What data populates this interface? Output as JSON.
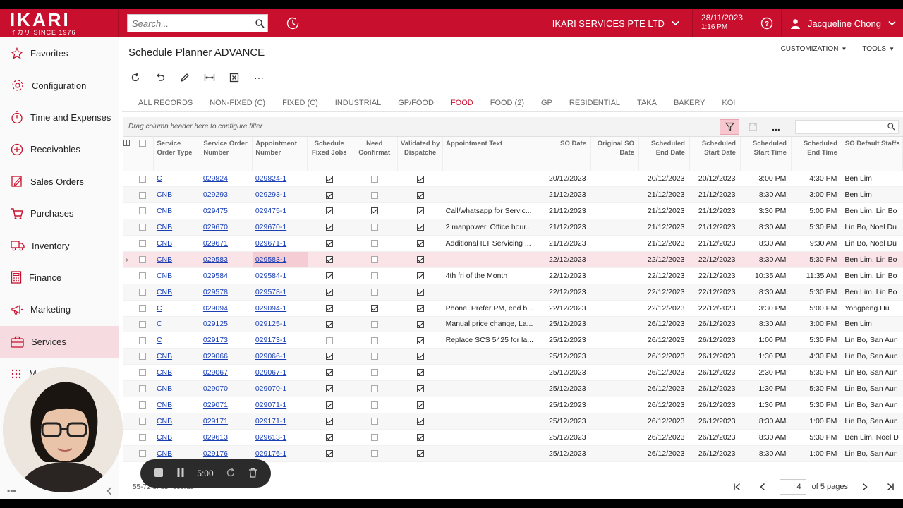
{
  "app": {
    "brand": "IKARI",
    "brand_sub": "イカリ SINCE 1976",
    "search_placeholder": "Search...",
    "company": "IKARI SERVICES PTE LTD",
    "date": "28/11/2023",
    "time": "1:16 PM",
    "user": "Jacqueline Chong"
  },
  "sidebar": {
    "items": [
      {
        "label": "Favorites",
        "icon": "star-icon"
      },
      {
        "label": "Configuration",
        "icon": "gear-icon"
      },
      {
        "label": "Time and Expenses",
        "icon": "stopwatch-icon"
      },
      {
        "label": "Receivables",
        "icon": "plus-circle-icon"
      },
      {
        "label": "Sales Orders",
        "icon": "edit-document-icon"
      },
      {
        "label": "Purchases",
        "icon": "cart-icon"
      },
      {
        "label": "Inventory",
        "icon": "truck-icon"
      },
      {
        "label": "Finance",
        "icon": "calculator-icon"
      },
      {
        "label": "Marketing",
        "icon": "megaphone-icon"
      },
      {
        "label": "Services",
        "icon": "briefcase-icon"
      }
    ],
    "more_label": "M"
  },
  "page": {
    "title": "Schedule Planner ADVANCE",
    "customization": "CUSTOMIZATION",
    "tools": "TOOLS"
  },
  "tabs": [
    "ALL RECORDS",
    "NON-FIXED (C)",
    "FIXED (C)",
    "INDUSTRIAL",
    "GP/FOOD",
    "FOOD",
    "FOOD (2)",
    "GP",
    "RESIDENTIAL",
    "TAKA",
    "BAKERY",
    "KOI"
  ],
  "active_tab": "FOOD",
  "grid": {
    "drag_hint": "Drag column header here to configure filter",
    "headers": {
      "so_type": "Service Order Type",
      "so_number": "Service Order Number",
      "appt_number": "Appointment Number",
      "fixed": "Schedule Fixed Jobs",
      "confirm": "Need Confirmat",
      "validated": "Validated by Dispatche",
      "appt_text": "Appointment Text",
      "so_date": "SO Date",
      "orig_so_date": "Original SO Date",
      "end_date": "Scheduled End Date",
      "start_date": "Scheduled Start Date",
      "start_time": "Scheduled Start Time",
      "end_time": "Scheduled End Time",
      "staff": "SO Default Staffs"
    },
    "rows": [
      {
        "type": "C",
        "so": "029824",
        "appt": "029824-1",
        "fixed": true,
        "confirm": false,
        "validated": true,
        "text": "",
        "so_date": "20/12/2023",
        "orig": "",
        "end_date": "20/12/2023",
        "start_date": "20/12/2023",
        "start_time": "3:00 PM",
        "end_time": "4:30 PM",
        "staff": "Ben Lim"
      },
      {
        "type": "CNB",
        "so": "029293",
        "appt": "029293-1",
        "fixed": true,
        "confirm": false,
        "validated": true,
        "text": "",
        "so_date": "21/12/2023",
        "orig": "",
        "end_date": "21/12/2023",
        "start_date": "21/12/2023",
        "start_time": "8:30 AM",
        "end_time": "3:00 PM",
        "staff": "Ben Lim"
      },
      {
        "type": "CNB",
        "so": "029475",
        "appt": "029475-1",
        "fixed": true,
        "confirm": true,
        "validated": true,
        "text": "Call/whatsapp for Servic...",
        "so_date": "21/12/2023",
        "orig": "",
        "end_date": "21/12/2023",
        "start_date": "21/12/2023",
        "start_time": "3:30 PM",
        "end_time": "5:00 PM",
        "staff": "Ben Lim, Lin Bo"
      },
      {
        "type": "CNB",
        "so": "029670",
        "appt": "029670-1",
        "fixed": true,
        "confirm": false,
        "validated": true,
        "text": "2 manpower. Office hour...",
        "so_date": "21/12/2023",
        "orig": "",
        "end_date": "21/12/2023",
        "start_date": "21/12/2023",
        "start_time": "8:30 AM",
        "end_time": "5:30 PM",
        "staff": "Lin Bo, Noel Du"
      },
      {
        "type": "CNB",
        "so": "029671",
        "appt": "029671-1",
        "fixed": true,
        "confirm": false,
        "validated": true,
        "text": "Additional ILT Servicing ...",
        "so_date": "21/12/2023",
        "orig": "",
        "end_date": "21/12/2023",
        "start_date": "21/12/2023",
        "start_time": "8:30 AM",
        "end_time": "9:30 AM",
        "staff": "Lin Bo, Noel Du"
      },
      {
        "type": "CNB",
        "so": "029583",
        "appt": "029583-1",
        "fixed": true,
        "confirm": false,
        "validated": true,
        "text": "",
        "so_date": "22/12/2023",
        "orig": "",
        "end_date": "22/12/2023",
        "start_date": "22/12/2023",
        "start_time": "8:30 AM",
        "end_time": "5:30 PM",
        "staff": "Ben Lim, Lin Bo"
      },
      {
        "type": "CNB",
        "so": "029584",
        "appt": "029584-1",
        "fixed": true,
        "confirm": false,
        "validated": true,
        "text": "4th fri of the Month",
        "so_date": "22/12/2023",
        "orig": "",
        "end_date": "22/12/2023",
        "start_date": "22/12/2023",
        "start_time": "10:35 AM",
        "end_time": "11:35 AM",
        "staff": "Ben Lim, Lin Bo"
      },
      {
        "type": "CNB",
        "so": "029578",
        "appt": "029578-1",
        "fixed": true,
        "confirm": false,
        "validated": true,
        "text": "",
        "so_date": "22/12/2023",
        "orig": "",
        "end_date": "22/12/2023",
        "start_date": "22/12/2023",
        "start_time": "8:30 AM",
        "end_time": "5:30 PM",
        "staff": "Ben Lim, Lin Bo"
      },
      {
        "type": "C",
        "so": "029094",
        "appt": "029094-1",
        "fixed": true,
        "confirm": true,
        "validated": true,
        "text": "Phone, Prefer PM, end b...",
        "so_date": "22/12/2023",
        "orig": "",
        "end_date": "22/12/2023",
        "start_date": "22/12/2023",
        "start_time": "3:30 PM",
        "end_time": "5:00 PM",
        "staff": "Yongpeng Hu"
      },
      {
        "type": "C",
        "so": "029125",
        "appt": "029125-1",
        "fixed": true,
        "confirm": false,
        "validated": true,
        "text": "Manual price change, La...",
        "so_date": "25/12/2023",
        "orig": "",
        "end_date": "26/12/2023",
        "start_date": "26/12/2023",
        "start_time": "8:30 AM",
        "end_time": "3:00 PM",
        "staff": "Ben Lim"
      },
      {
        "type": "C",
        "so": "029173",
        "appt": "029173-1",
        "fixed": false,
        "confirm": false,
        "validated": true,
        "text": "Replace SCS 5425 for la...",
        "so_date": "25/12/2023",
        "orig": "",
        "end_date": "26/12/2023",
        "start_date": "26/12/2023",
        "start_time": "1:00 PM",
        "end_time": "5:30 PM",
        "staff": "Lin Bo, San Aun"
      },
      {
        "type": "CNB",
        "so": "029066",
        "appt": "029066-1",
        "fixed": true,
        "confirm": false,
        "validated": true,
        "text": "",
        "so_date": "25/12/2023",
        "orig": "",
        "end_date": "26/12/2023",
        "start_date": "26/12/2023",
        "start_time": "1:30 PM",
        "end_time": "4:30 PM",
        "staff": "Lin Bo, San Aun"
      },
      {
        "type": "CNB",
        "so": "029067",
        "appt": "029067-1",
        "fixed": true,
        "confirm": false,
        "validated": true,
        "text": "",
        "so_date": "25/12/2023",
        "orig": "",
        "end_date": "26/12/2023",
        "start_date": "26/12/2023",
        "start_time": "2:30 PM",
        "end_time": "5:30 PM",
        "staff": "Lin Bo, San Aun"
      },
      {
        "type": "CNB",
        "so": "029070",
        "appt": "029070-1",
        "fixed": true,
        "confirm": false,
        "validated": true,
        "text": "",
        "so_date": "25/12/2023",
        "orig": "",
        "end_date": "26/12/2023",
        "start_date": "26/12/2023",
        "start_time": "1:30 PM",
        "end_time": "5:30 PM",
        "staff": "Lin Bo, San Aun"
      },
      {
        "type": "CNB",
        "so": "029071",
        "appt": "029071-1",
        "fixed": true,
        "confirm": false,
        "validated": true,
        "text": "",
        "so_date": "25/12/2023",
        "orig": "",
        "end_date": "26/12/2023",
        "start_date": "26/12/2023",
        "start_time": "1:30 PM",
        "end_time": "5:30 PM",
        "staff": "Lin Bo, San Aun"
      },
      {
        "type": "CNB",
        "so": "029171",
        "appt": "029171-1",
        "fixed": true,
        "confirm": false,
        "validated": true,
        "text": "",
        "so_date": "25/12/2023",
        "orig": "",
        "end_date": "26/12/2023",
        "start_date": "26/12/2023",
        "start_time": "8:30 AM",
        "end_time": "1:00 PM",
        "staff": "Lin Bo, San Aun"
      },
      {
        "type": "CNB",
        "so": "029613",
        "appt": "029613-1",
        "fixed": true,
        "confirm": false,
        "validated": true,
        "text": "",
        "so_date": "25/12/2023",
        "orig": "",
        "end_date": "26/12/2023",
        "start_date": "26/12/2023",
        "start_time": "8:30 AM",
        "end_time": "5:30 PM",
        "staff": "Ben Lim, Noel D"
      },
      {
        "type": "CNB",
        "so": "029176",
        "appt": "029176-1",
        "fixed": true,
        "confirm": false,
        "validated": true,
        "text": "",
        "so_date": "25/12/2023",
        "orig": "",
        "end_date": "26/12/2023",
        "start_date": "26/12/2023",
        "start_time": "8:30 AM",
        "end_time": "1:00 PM",
        "staff": "Lin Bo, San Aun"
      }
    ],
    "selected_row": 5
  },
  "footer": {
    "records": "55-72 of 85 records",
    "page": "4",
    "of_pages": "of 5 pages"
  },
  "recorder": {
    "timer": "5:00"
  },
  "colors": {
    "brand_red": "#c8102e",
    "link_blue": "#1a3fb5",
    "active_bg": "#f6dbe0"
  }
}
